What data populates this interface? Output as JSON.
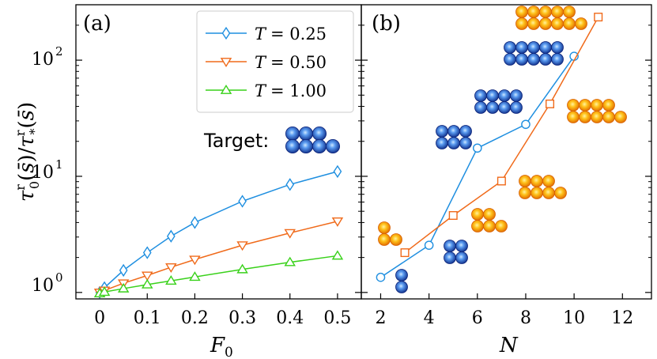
{
  "colors": {
    "t025": "#1f8fe0",
    "t050": "#f06a1a",
    "t100": "#39d11a",
    "blue_ball": "#1a4fc8",
    "blue_ball_light": "#9fd0ff",
    "orange_ball": "#f08c00",
    "orange_ball_light": "#ffe27a"
  },
  "chart_data": [
    {
      "type": "line",
      "panel": "(a)",
      "xlabel": "F_0",
      "xlabel_main": "F",
      "xlabel_sub": "0",
      "ylabel": "τ_0^r(s̄)/τ_*^r(s̄)",
      "ylabel_parts": [
        "τ",
        "r",
        "0",
        "(",
        "s̄",
        ")/",
        "τ",
        "r",
        "*",
        "(",
        "s̄",
        ")"
      ],
      "yscale": "log",
      "xlim": [
        -0.05,
        0.55
      ],
      "ylim": [
        0.88,
        300
      ],
      "xticks": [
        0,
        0.1,
        0.2,
        0.3,
        0.4,
        0.5
      ],
      "xtick_labels": [
        "0",
        "0.1",
        "0.2",
        "0.3",
        "0.4",
        "0.5"
      ],
      "yticks": [
        1,
        10,
        100
      ],
      "ytick_bases": [
        "10",
        "10",
        "10"
      ],
      "ytick_exponents": [
        "0",
        "1",
        "2"
      ],
      "target_label": "Target:",
      "series": [
        {
          "name": "T = 0.25",
          "legend_var": "T",
          "legend_value": "= 0.25",
          "marker": "diamond",
          "x": [
            0,
            0.01,
            0.05,
            0.1,
            0.15,
            0.2,
            0.3,
            0.4,
            0.5
          ],
          "y": [
            1.0,
            1.1,
            1.55,
            2.2,
            3.05,
            4.0,
            6.1,
            8.5,
            11.0
          ]
        },
        {
          "name": "T = 0.50",
          "legend_var": "T",
          "legend_value": "= 0.50",
          "marker": "triangle-down",
          "x": [
            0,
            0.01,
            0.05,
            0.1,
            0.15,
            0.2,
            0.3,
            0.4,
            0.5
          ],
          "y": [
            1.0,
            1.04,
            1.2,
            1.4,
            1.65,
            1.92,
            2.55,
            3.25,
            4.1
          ]
        },
        {
          "name": "T = 1.00",
          "legend_var": "T",
          "legend_value": "= 1.00",
          "marker": "triangle-up",
          "x": [
            0,
            0.01,
            0.05,
            0.1,
            0.15,
            0.2,
            0.3,
            0.4,
            0.5
          ],
          "y": [
            0.98,
            1.01,
            1.08,
            1.17,
            1.26,
            1.36,
            1.58,
            1.82,
            2.07
          ]
        }
      ]
    },
    {
      "type": "line",
      "panel": "(b)",
      "xlabel": "N",
      "yscale": "log",
      "xlim": [
        1.2,
        13.2
      ],
      "ylim": [
        0.88,
        300
      ],
      "xticks": [
        2,
        4,
        6,
        8,
        10,
        12
      ],
      "xtick_labels": [
        "2",
        "4",
        "6",
        "8",
        "10",
        "12"
      ],
      "series": [
        {
          "name": "blue (circles)",
          "marker": "circle",
          "x": [
            2,
            4,
            6,
            8,
            10
          ],
          "y": [
            1.35,
            2.55,
            17.5,
            28.0,
            108.0
          ]
        },
        {
          "name": "orange (squares)",
          "marker": "square",
          "x": [
            3,
            5,
            7,
            9,
            11
          ],
          "y": [
            2.2,
            4.6,
            9.1,
            42.0,
            235.0
          ]
        }
      ]
    }
  ]
}
